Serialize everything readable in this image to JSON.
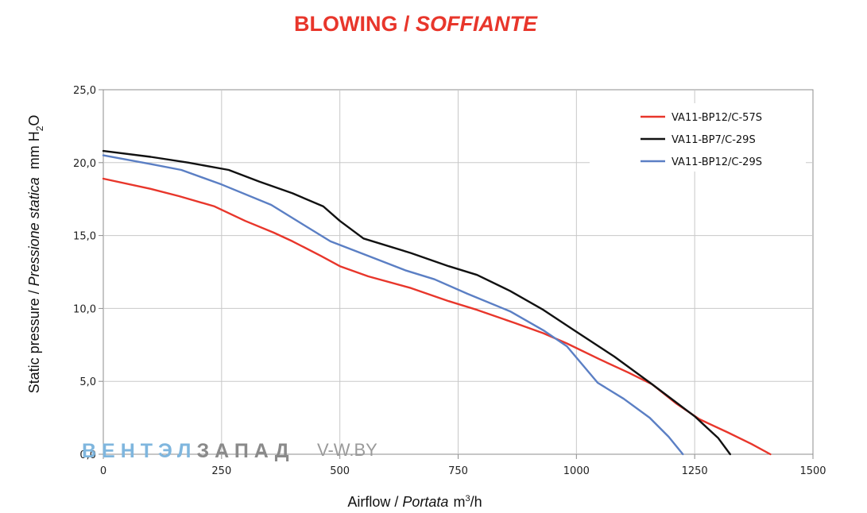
{
  "chart_data": {
    "type": "line",
    "title": {
      "main": "BLOWING / ",
      "italic": "SOFFIANTE"
    },
    "xlabel": {
      "main": "Airflow / ",
      "italic": "Portata",
      "unit_pre": "m",
      "unit_sup": "3",
      "unit_post": "/h"
    },
    "ylabel": {
      "main": "Static pressure / ",
      "italic": "Pressione statica",
      "unit_pre": "mm H",
      "unit_sub": "2",
      "unit_post": "O"
    },
    "xlim": [
      0,
      1500
    ],
    "ylim": [
      0,
      25
    ],
    "x_ticks": [
      0,
      250,
      500,
      750,
      1000,
      1250,
      1500
    ],
    "x_tick_labels": [
      "0",
      "250",
      "500",
      "750",
      "1000",
      "1250",
      "1500"
    ],
    "y_ticks": [
      0,
      5,
      10,
      15,
      20,
      25
    ],
    "y_tick_labels": [
      "0,0",
      "5,0",
      "10,0",
      "15,0",
      "20,0",
      "25,0"
    ],
    "grid": true,
    "legend_position": "top-right",
    "series": [
      {
        "name": "VA11-BP12/C-57S",
        "color": "#e8362b",
        "x": [
          0,
          100,
          160,
          235,
          300,
          360,
          400,
          460,
          500,
          560,
          650,
          730,
          790,
          870,
          930,
          980,
          1050,
          1110,
          1160,
          1210,
          1260,
          1320,
          1370,
          1410
        ],
        "y": [
          18.9,
          18.2,
          17.7,
          17.0,
          16.0,
          15.2,
          14.6,
          13.6,
          12.9,
          12.2,
          11.4,
          10.5,
          9.9,
          9.0,
          8.3,
          7.6,
          6.5,
          5.6,
          4.8,
          3.5,
          2.4,
          1.5,
          0.7,
          0.0
        ]
      },
      {
        "name": "VA11-BP7/C-29S",
        "color": "#111111",
        "x": [
          0,
          100,
          180,
          265,
          330,
          400,
          465,
          500,
          550,
          650,
          730,
          790,
          860,
          930,
          1000,
          1080,
          1160,
          1250,
          1300,
          1325
        ],
        "y": [
          20.8,
          20.4,
          20.0,
          19.5,
          18.7,
          17.9,
          17.0,
          16.0,
          14.8,
          13.8,
          12.9,
          12.3,
          11.2,
          9.9,
          8.4,
          6.7,
          4.8,
          2.6,
          1.1,
          0.0
        ]
      },
      {
        "name": "VA11-BP12/C-29S",
        "color": "#5b7fc4",
        "x": [
          0,
          100,
          165,
          250,
          355,
          420,
          480,
          560,
          640,
          700,
          770,
          860,
          930,
          980,
          1045,
          1100,
          1155,
          1195,
          1225
        ],
        "y": [
          20.5,
          19.9,
          19.5,
          18.5,
          17.1,
          15.8,
          14.6,
          13.6,
          12.6,
          12.0,
          11.0,
          9.8,
          8.5,
          7.4,
          4.9,
          3.8,
          2.5,
          1.2,
          0.0
        ]
      }
    ]
  },
  "watermark": {
    "part1": "ВЕНТЭЛ",
    "part2": "ЗАПАД",
    "part3": "V-W.BY"
  }
}
